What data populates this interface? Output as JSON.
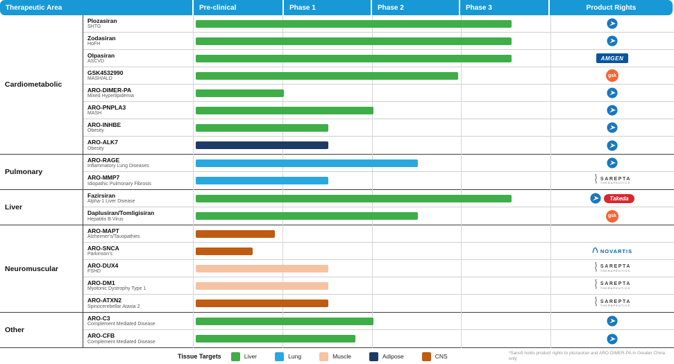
{
  "header": {
    "columns": [
      "Therapeutic Area",
      "Pre-clinical",
      "Phase 1",
      "Phase 2",
      "Phase 3",
      "Product Rights"
    ]
  },
  "colors": {
    "Liver": "#3FAE49",
    "Lung": "#29A8E0",
    "Muscle": "#F6C3A2",
    "Adipose": "#1E3A66",
    "CNS": "#C05B12",
    "header": "#1899D5"
  },
  "chart_data": {
    "type": "bar",
    "subtype": "pipeline-gantt",
    "stages": [
      "Pre-clinical",
      "Phase 1",
      "Phase 2",
      "Phase 3"
    ],
    "stage_scale_note": "stage_end: 0=start Pre-clinical, 1=end Pre-clinical, 2=end Phase 1, 3=end Phase 2, 4=end Phase 3",
    "groups": [
      {
        "area": "Cardiometabolic",
        "programs": [
          {
            "name": "Plozasiran",
            "indication": "SHTG",
            "tissue": "Liver",
            "stage_end": 3.55,
            "rights": [
              "arrowhead"
            ]
          },
          {
            "name": "Zodasiran",
            "indication": "HoFH",
            "tissue": "Liver",
            "stage_end": 3.55,
            "rights": [
              "arrowhead"
            ]
          },
          {
            "name": "Olpasiran",
            "indication": "ASCVD",
            "tissue": "Liver",
            "stage_end": 3.55,
            "rights": [
              "amgen"
            ]
          },
          {
            "name": "GSK4532990",
            "indication": "MASH/ALD",
            "tissue": "Liver",
            "stage_end": 2.95,
            "rights": [
              "gsk"
            ]
          },
          {
            "name": "ARO-DIMER-PA",
            "indication": "Mixed Hyperlipidemia",
            "tissue": "Liver",
            "stage_end": 1.0,
            "rights": [
              "arrowhead"
            ]
          },
          {
            "name": "ARO-PNPLA3",
            "indication": "MASH",
            "tissue": "Liver",
            "stage_end": 2.0,
            "rights": [
              "arrowhead"
            ]
          },
          {
            "name": "ARO-INHBE",
            "indication": "Obesity",
            "tissue": "Liver",
            "stage_end": 1.5,
            "rights": [
              "arrowhead"
            ]
          },
          {
            "name": "ARO-ALK7",
            "indication": "Obesity",
            "tissue": "Adipose",
            "stage_end": 1.5,
            "rights": [
              "arrowhead"
            ]
          }
        ]
      },
      {
        "area": "Pulmonary",
        "programs": [
          {
            "name": "ARO-RAGE",
            "indication": "Inflammatory Lung Diseases",
            "tissue": "Lung",
            "stage_end": 2.5,
            "rights": [
              "arrowhead"
            ]
          },
          {
            "name": "ARO-MMP7",
            "indication": "Idiopathic Pulmonary Fibrosis",
            "tissue": "Lung",
            "stage_end": 1.5,
            "rights": [
              "sarepta"
            ]
          }
        ]
      },
      {
        "area": "Liver",
        "programs": [
          {
            "name": "Fazirsiran",
            "indication": "Alpha-1 Liver Disease",
            "tissue": "Liver",
            "stage_end": 3.55,
            "rights": [
              "arrowhead",
              "takeda"
            ]
          },
          {
            "name": "Daplusiran/Tomligisiran",
            "indication": "Hepatitis B Virus",
            "tissue": "Liver",
            "stage_end": 2.5,
            "rights": [
              "gsk"
            ]
          }
        ]
      },
      {
        "area": "Neuromuscular",
        "programs": [
          {
            "name": "ARO-MAPT",
            "indication": "Alzheimer's/Tauopathies",
            "tissue": "CNS",
            "stage_end": 0.9,
            "rights": []
          },
          {
            "name": "ARO-SNCA",
            "indication": "Parkinson's",
            "tissue": "CNS",
            "stage_end": 0.65,
            "rights": [
              "novartis"
            ]
          },
          {
            "name": "ARO-DUX4",
            "indication": "FSHD",
            "tissue": "Muscle",
            "stage_end": 1.5,
            "rights": [
              "sarepta"
            ]
          },
          {
            "name": "ARO-DM1",
            "indication": "Myotonic Dystrophy Type 1",
            "tissue": "Muscle",
            "stage_end": 1.5,
            "rights": [
              "sarepta"
            ]
          },
          {
            "name": "ARO-ATXN2",
            "indication": "Spinocerebellar Ataxia 2",
            "tissue": "CNS",
            "stage_end": 1.5,
            "rights": [
              "sarepta"
            ]
          }
        ]
      },
      {
        "area": "Other",
        "programs": [
          {
            "name": "ARO-C3",
            "indication": "Complement Mediated Disease",
            "tissue": "Liver",
            "stage_end": 2.0,
            "rights": [
              "arrowhead"
            ]
          },
          {
            "name": "ARO-CFB",
            "indication": "Complement Mediated Disease",
            "tissue": "Liver",
            "stage_end": 1.8,
            "rights": [
              "arrowhead"
            ]
          }
        ]
      }
    ]
  },
  "legend": {
    "title": "Tissue Targets",
    "items": [
      {
        "label": "Liver",
        "color": "#3FAE49"
      },
      {
        "label": "Lung",
        "color": "#29A8E0"
      },
      {
        "label": "Muscle",
        "color": "#F6C3A2"
      },
      {
        "label": "Adipose",
        "color": "#1E3A66"
      },
      {
        "label": "CNS",
        "color": "#C05B12"
      }
    ]
  },
  "footnote": "*Sanofi holds product rights to plozasiran and ARO-DIMER-PA in Greater China only",
  "logos": {
    "amgen": "AMGEN",
    "gsk": "gsk",
    "takeda": "Takeda",
    "novartis": "NOVARTIS",
    "sarepta_line1": "SAREPTA",
    "sarepta_line2": "THERAPEUTICS"
  }
}
